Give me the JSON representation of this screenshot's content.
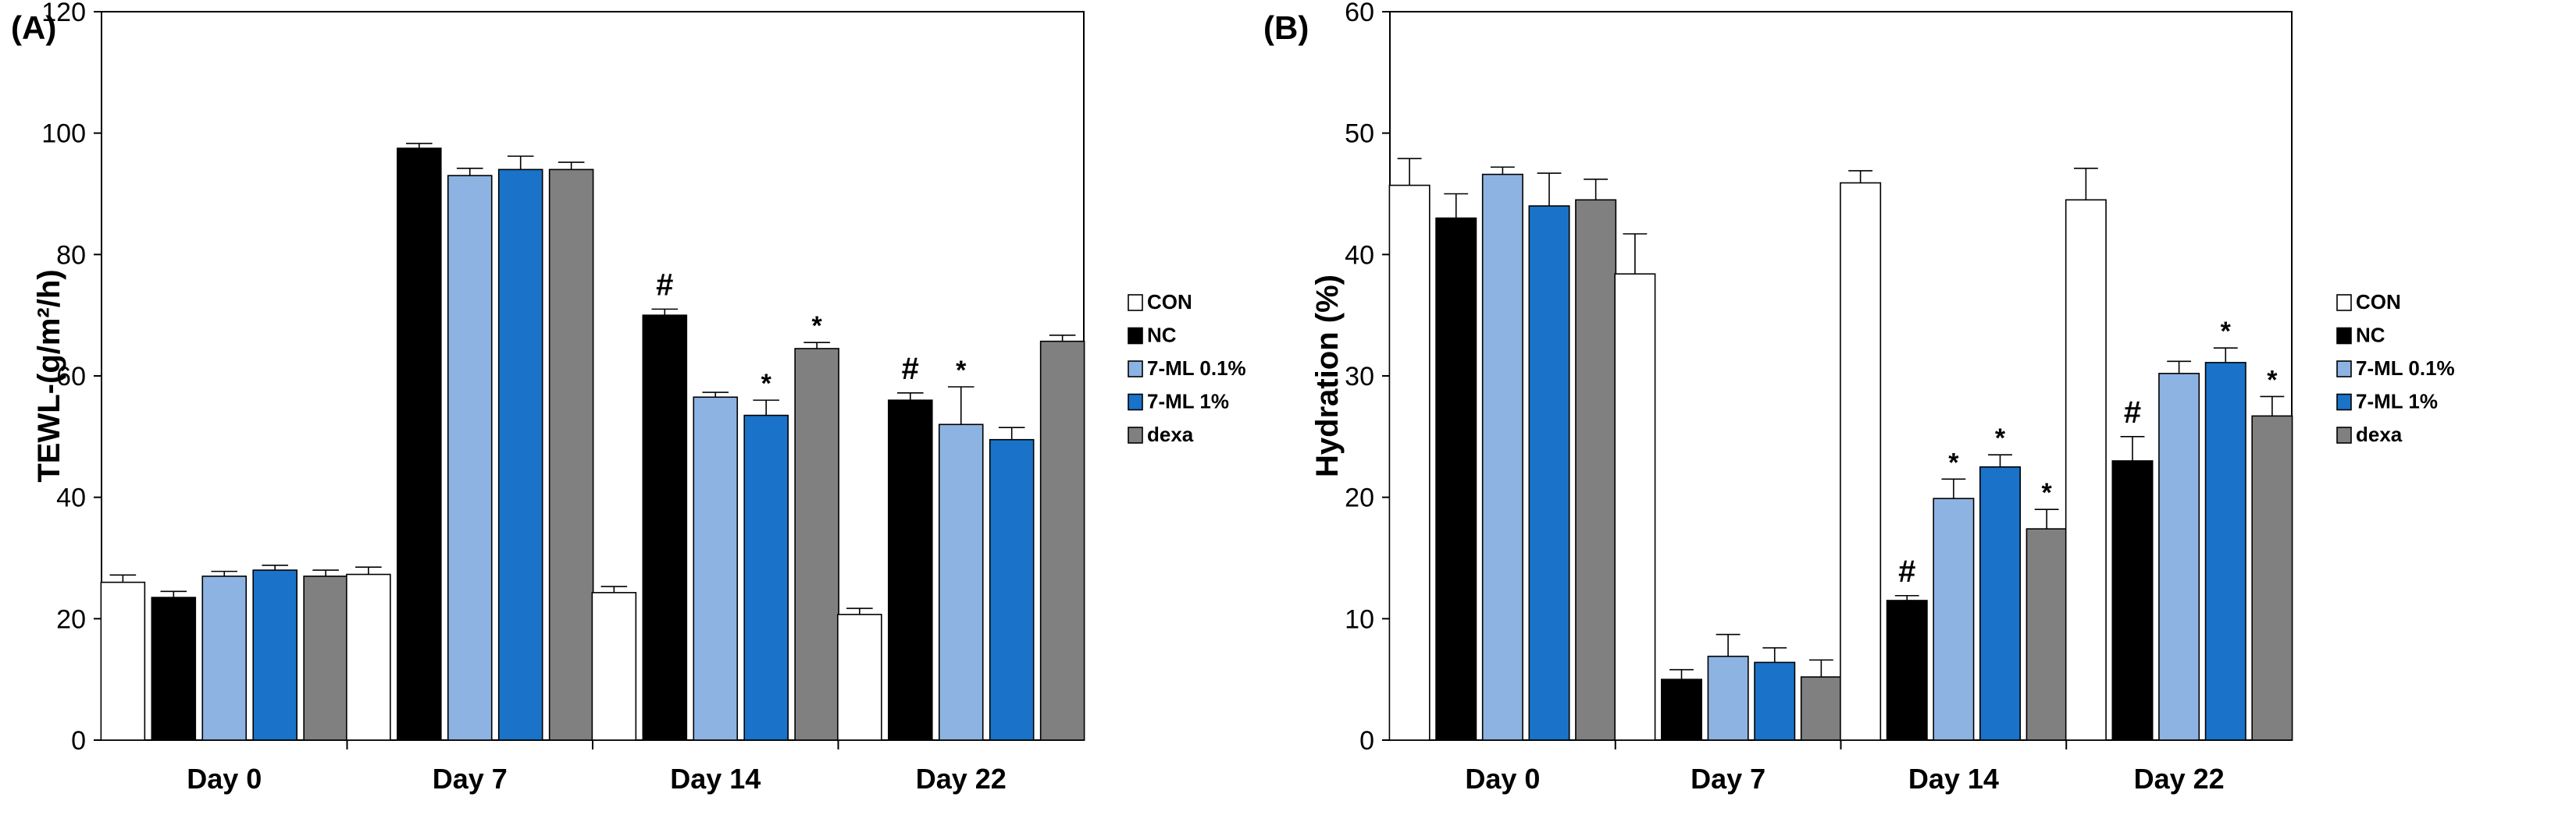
{
  "chart_data": [
    {
      "panel_label": "(A)",
      "type": "bar",
      "ylabel": "TEWL-(g/m²/h)",
      "ylim": [
        0,
        120
      ],
      "yticks": [
        0,
        20,
        40,
        60,
        80,
        100,
        120
      ],
      "categories": [
        "Day 0",
        "Day 7",
        "Day 14",
        "Day 22"
      ],
      "series": [
        {
          "name": "CON",
          "color": "#ffffff",
          "values": [
            26,
            27.3,
            24.3,
            20.7
          ],
          "errors": [
            1.2,
            1.2,
            1.0,
            1.0
          ]
        },
        {
          "name": "NC",
          "color": "#000000",
          "values": [
            23.5,
            97.5,
            70,
            56
          ],
          "errors": [
            1.0,
            0.8,
            1.0,
            1.2
          ]
        },
        {
          "name": "7-ML 0.1%",
          "color": "#8db3e2",
          "values": [
            27,
            93,
            56.5,
            52
          ],
          "errors": [
            0.8,
            1.2,
            0.8,
            6.2
          ]
        },
        {
          "name": "7-ML 1%",
          "color": "#1a73c8",
          "values": [
            28,
            94,
            53.5,
            49.5
          ],
          "errors": [
            0.8,
            2.2,
            2.5,
            2.0
          ]
        },
        {
          "name": "dexa",
          "color": "#808080",
          "values": [
            27,
            94,
            64.5,
            65.7
          ],
          "errors": [
            1.0,
            1.2,
            1.0,
            1.0
          ]
        }
      ],
      "annotations": [
        {
          "category": "Day 14",
          "series": "NC",
          "text": "#"
        },
        {
          "category": "Day 14",
          "series": "7-ML 1%",
          "text": "*"
        },
        {
          "category": "Day 14",
          "series": "dexa",
          "text": "*"
        },
        {
          "category": "Day 22",
          "series": "NC",
          "text": "#"
        },
        {
          "category": "Day 22",
          "series": "7-ML 0.1%",
          "text": "*"
        }
      ],
      "legend": [
        "CON",
        "NC",
        "7-ML 0.1%",
        "7-ML 1%",
        "dexa"
      ]
    },
    {
      "panel_label": "(B)",
      "type": "bar",
      "ylabel": "Hydration (%)",
      "ylim": [
        0,
        60
      ],
      "yticks": [
        0,
        10,
        20,
        30,
        40,
        50,
        60
      ],
      "categories": [
        "Day 0",
        "Day 7",
        "Day 14",
        "Day 22"
      ],
      "series": [
        {
          "name": "CON",
          "color": "#ffffff",
          "values": [
            45.7,
            38.4,
            45.9,
            44.5
          ],
          "errors": [
            2.2,
            3.3,
            1.0,
            2.6
          ]
        },
        {
          "name": "NC",
          "color": "#000000",
          "values": [
            43,
            5,
            11.5,
            23
          ],
          "errors": [
            2.0,
            0.8,
            0.4,
            2.0
          ]
        },
        {
          "name": "7-ML 0.1%",
          "color": "#8db3e2",
          "values": [
            46.6,
            6.9,
            19.9,
            30.2
          ],
          "errors": [
            0.6,
            1.8,
            1.6,
            1.0
          ]
        },
        {
          "name": "7-ML 1%",
          "color": "#1a73c8",
          "values": [
            44,
            6.4,
            22.5,
            31.1
          ],
          "errors": [
            2.7,
            1.2,
            1.0,
            1.2
          ]
        },
        {
          "name": "dexa",
          "color": "#808080",
          "values": [
            44.5,
            5.2,
            17.4,
            26.7
          ],
          "errors": [
            1.7,
            1.4,
            1.6,
            1.6
          ]
        }
      ],
      "annotations": [
        {
          "category": "Day 14",
          "series": "NC",
          "text": "#"
        },
        {
          "category": "Day 14",
          "series": "7-ML 0.1%",
          "text": "*"
        },
        {
          "category": "Day 14",
          "series": "7-ML 1%",
          "text": "*"
        },
        {
          "category": "Day 14",
          "series": "dexa",
          "text": "*"
        },
        {
          "category": "Day 22",
          "series": "NC",
          "text": "#"
        },
        {
          "category": "Day 22",
          "series": "7-ML 1%",
          "text": "*"
        },
        {
          "category": "Day 22",
          "series": "dexa",
          "text": "*"
        }
      ],
      "legend": [
        "CON",
        "NC",
        "7-ML 0.1%",
        "7-ML 1%",
        "dexa"
      ]
    }
  ]
}
